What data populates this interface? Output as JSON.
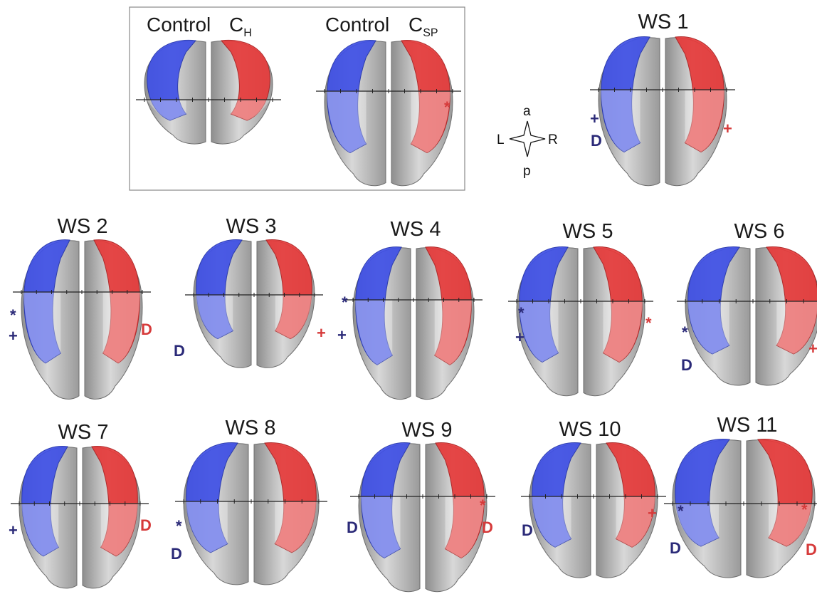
{
  "colors": {
    "left_hemisphere_fill": "#3f50e6",
    "right_hemisphere_fill": "#e63a3a",
    "cortex_gray": "#a9a9a9",
    "left_marker": "#2b2a78",
    "right_marker": "#d63a3a"
  },
  "control_box": {
    "panels": [
      {
        "label": "Control",
        "symbol": "C",
        "subscript": "H"
      },
      {
        "label": "Control",
        "symbol": "C",
        "subscript": "SP",
        "right_marks": [
          "*"
        ]
      }
    ]
  },
  "compass": {
    "anterior": "a",
    "posterior": "p",
    "left": "L",
    "right": "R"
  },
  "subjects": [
    {
      "title": "WS 1",
      "left_marks": [
        "+",
        "D"
      ],
      "right_marks": [
        "+"
      ]
    },
    {
      "title": "WS 2",
      "left_marks": [
        "*",
        "+"
      ],
      "right_marks": [
        "D"
      ]
    },
    {
      "title": "WS 3",
      "left_marks": [
        "D"
      ],
      "right_marks": [
        "+"
      ]
    },
    {
      "title": "WS 4",
      "left_marks": [
        "*",
        "+"
      ],
      "right_marks": []
    },
    {
      "title": "WS 5",
      "left_marks": [
        "*",
        "+"
      ],
      "right_marks": [
        "*"
      ]
    },
    {
      "title": "WS 6",
      "left_marks": [
        "*",
        "D"
      ],
      "right_marks": [
        "+"
      ]
    },
    {
      "title": "WS 7",
      "left_marks": [
        "+"
      ],
      "right_marks": [
        "D"
      ]
    },
    {
      "title": "WS 8",
      "left_marks": [
        "*",
        "D"
      ],
      "right_marks": []
    },
    {
      "title": "WS 9",
      "left_marks": [
        "D"
      ],
      "right_marks": [
        "*",
        "D"
      ]
    },
    {
      "title": "WS 10",
      "left_marks": [
        "D"
      ],
      "right_marks": [
        "+"
      ]
    },
    {
      "title": "WS 11",
      "left_marks": [
        "*",
        "D"
      ],
      "right_marks": [
        "*",
        "D"
      ]
    }
  ]
}
